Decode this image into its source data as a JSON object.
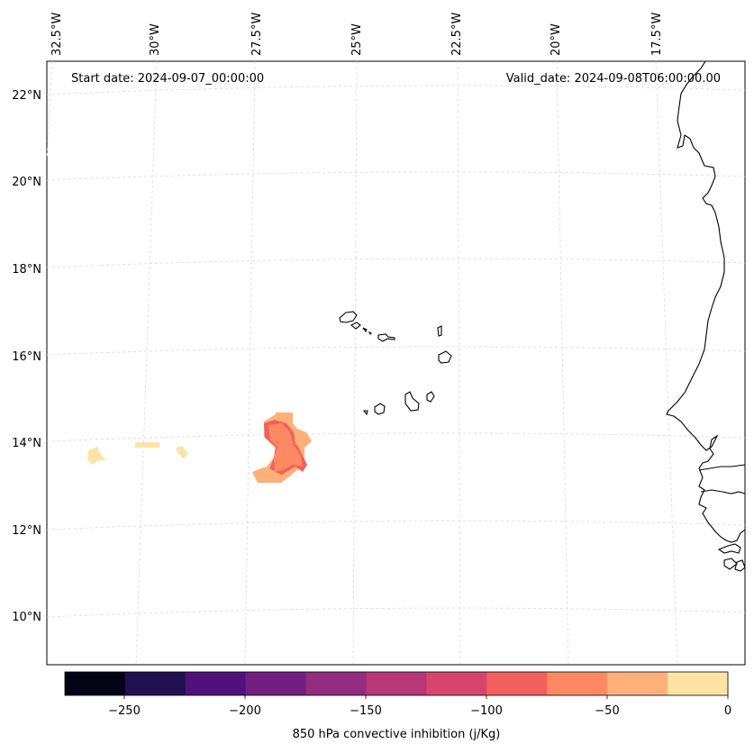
{
  "annotations": {
    "start_date": "Start date: 2024-09-07_00:00:00",
    "valid_date": "Valid_date: 2024-09-08T06:00:00.00"
  },
  "longitude_labels": [
    "32.5°W",
    "30°W",
    "27.5°W",
    "25°W",
    "22.5°W",
    "20°W",
    "17.5°W"
  ],
  "latitude_labels": [
    "22°N",
    "20°N",
    "18°N",
    "16°N",
    "14°N",
    "12°N",
    "10°N"
  ],
  "colorbar": {
    "label": "850 hPa convective inhibition (j/Kg)",
    "ticks": [
      "−250",
      "−200",
      "−150",
      "−100",
      "−50",
      "0"
    ],
    "colors": [
      "#050416",
      "#221150",
      "#4f127b",
      "#721f81",
      "#942c80",
      "#b73779",
      "#d8456c",
      "#f1605d",
      "#fc8961",
      "#feb078",
      "#fde4a5"
    ]
  },
  "cin_patch_colors": {
    "light": "#fde4a5",
    "mid": "#feb078",
    "orange": "#fc8961",
    "red": "#f1605d"
  }
}
